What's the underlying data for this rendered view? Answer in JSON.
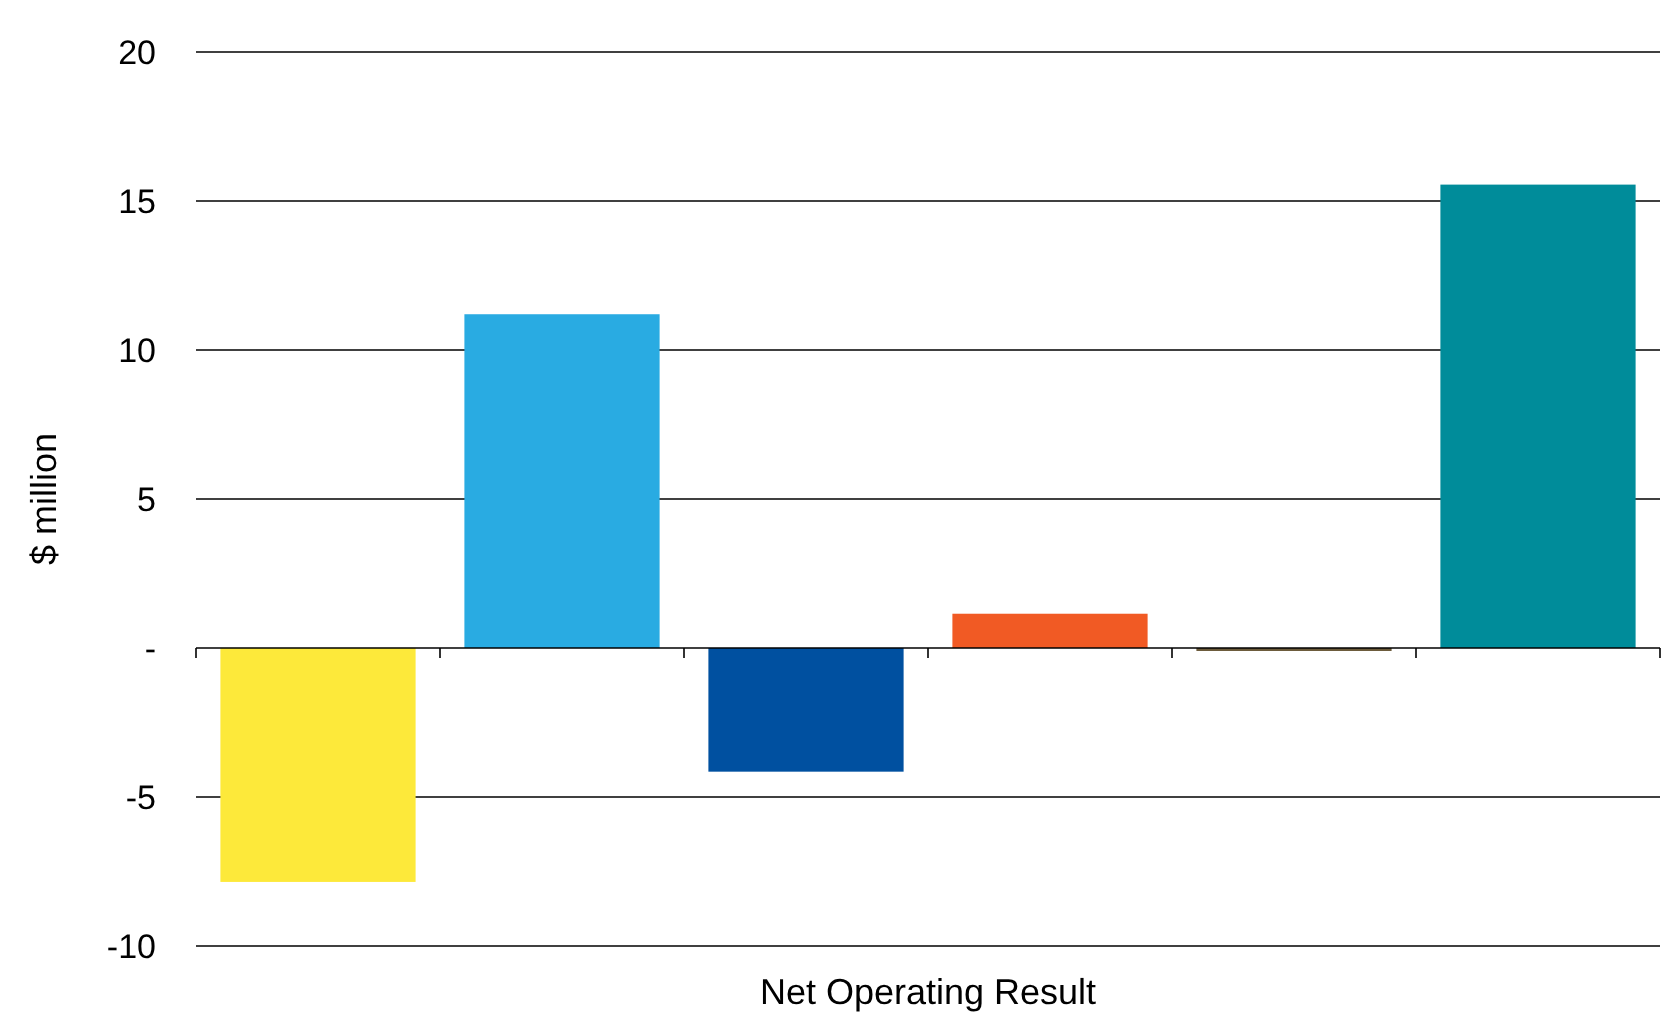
{
  "chart_data": {
    "type": "bar",
    "xlabel": "Net Operating Result",
    "ylabel": "$ million",
    "categories": [
      null,
      null,
      null,
      null,
      null,
      null
    ],
    "values": [
      -7.85,
      11.2,
      -4.15,
      1.15,
      -0.1,
      15.55
    ],
    "colors": [
      "#fde93a",
      "#29abe2",
      "#0050a0",
      "#f15a24",
      "#6b5a3a",
      "#008c9a"
    ],
    "ylim": [
      -10,
      20
    ],
    "yticks": [
      -10,
      -5,
      {
        "value": 0,
        "label": "-"
      },
      5,
      10,
      15,
      20
    ],
    "grid": "y"
  }
}
